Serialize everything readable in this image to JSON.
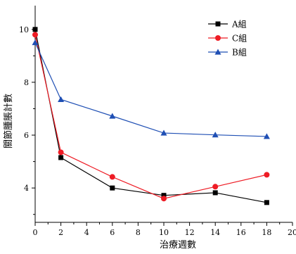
{
  "chart_data": {
    "type": "line",
    "title": "",
    "xlabel": "治療週數",
    "ylabel": "關節腫脹計數",
    "xlim": [
      0,
      20
    ],
    "ylim": [
      2.7,
      10.9
    ],
    "xticks": [
      0,
      2,
      4,
      6,
      8,
      10,
      12,
      14,
      16,
      18,
      20
    ],
    "yticks": [
      4,
      6,
      8,
      10
    ],
    "x": [
      0,
      2,
      6,
      10,
      14,
      18
    ],
    "grid": false,
    "legend_position": "top-right",
    "series": [
      {
        "name": "A組",
        "color": "#000000",
        "marker": "square",
        "values": [
          10.0,
          5.15,
          4.0,
          3.72,
          3.82,
          3.45
        ]
      },
      {
        "name": "C組",
        "color": "#ee1c25",
        "marker": "circle",
        "values": [
          9.8,
          5.35,
          4.42,
          3.6,
          4.05,
          4.5
        ]
      },
      {
        "name": "B組",
        "color": "#1f4fb4",
        "marker": "triangle",
        "values": [
          9.5,
          7.35,
          6.72,
          6.08,
          6.01,
          5.95
        ]
      }
    ]
  }
}
